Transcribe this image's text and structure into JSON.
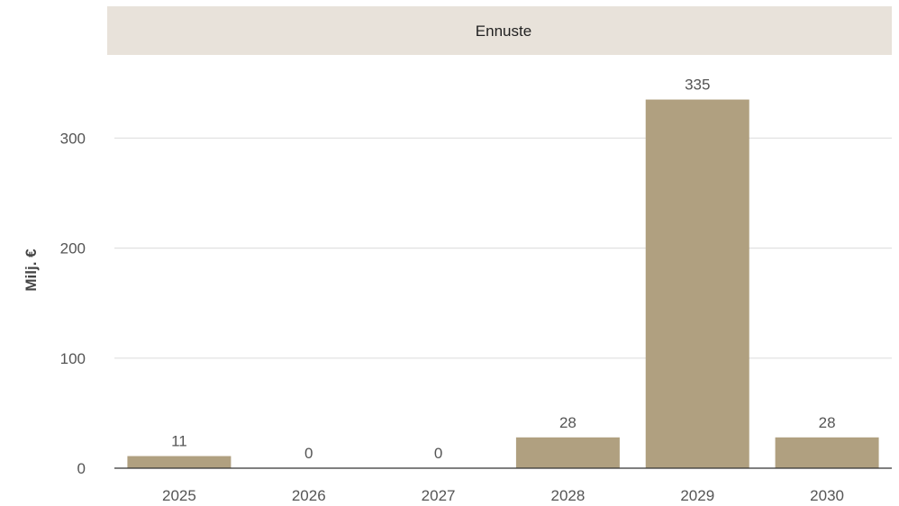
{
  "chart_data": {
    "type": "bar",
    "header": "Ennuste",
    "categories": [
      "2025",
      "2026",
      "2027",
      "2028",
      "2029",
      "2030"
    ],
    "values": [
      11,
      0,
      0,
      28,
      335,
      28
    ],
    "xlabel": "",
    "ylabel": "Milj. €",
    "ylim": [
      0,
      350
    ],
    "yticks": [
      0,
      100,
      200,
      300
    ],
    "grid": true,
    "colors": {
      "bar": "#b0a080",
      "header_bg": "#e8e2da",
      "grid": "#e2e2e2",
      "axis": "#333333"
    }
  }
}
